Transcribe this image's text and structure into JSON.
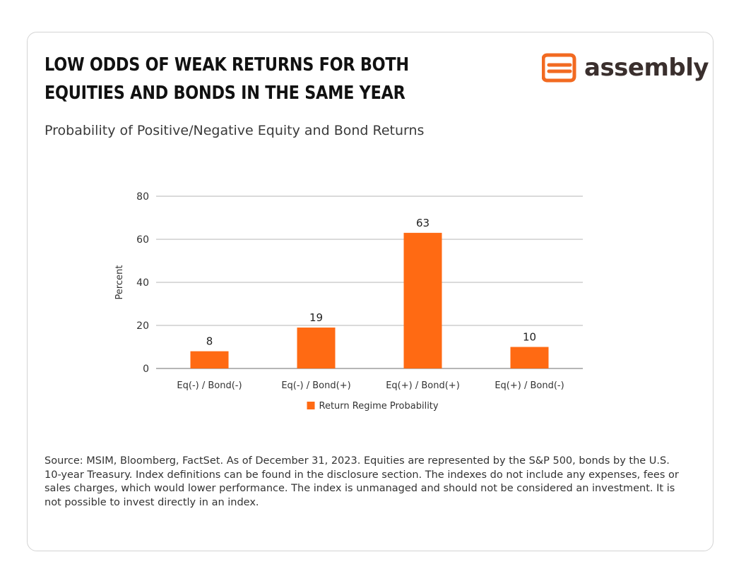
{
  "header": {
    "title": "LOW ODDS OF WEAK RETURNS FOR BOTH EQUITIES AND BONDS IN THE SAME YEAR",
    "subtitle": "Probability of Positive/Negative Equity and Bond Returns"
  },
  "logo": {
    "text": "assembly",
    "icon": "assembly-logo-icon",
    "color": "#F26A21"
  },
  "chart_data": {
    "type": "bar",
    "categories": [
      "Eq(-) / Bond(-)",
      "Eq(-) / Bond(+)",
      "Eq(+) / Bond(+)",
      "Eq(+) / Bond(-)"
    ],
    "series": [
      {
        "name": "Return Regime Probability",
        "values": [
          8,
          19,
          63,
          10
        ],
        "color": "#FF6A13"
      }
    ],
    "data_labels": [
      "8",
      "19",
      "63",
      "10"
    ],
    "ylabel": "Percent",
    "xlabel": "",
    "ylim": [
      0,
      80
    ],
    "yticks": [
      0,
      20,
      40,
      60,
      80
    ],
    "grid": true,
    "legend": "bottom-center"
  },
  "footnote": "Source: MSIM, Bloomberg, FactSet. As of December 31, 2023. Equities are represented by the S&P 500, bonds by the U.S. 10-year Treasury. Index definitions can be found in the disclosure section. The indexes do not include any expenses, fees or sales charges, which would lower performance. The index is unmanaged and should not be considered an investment. It is not possible to invest directly in an index."
}
